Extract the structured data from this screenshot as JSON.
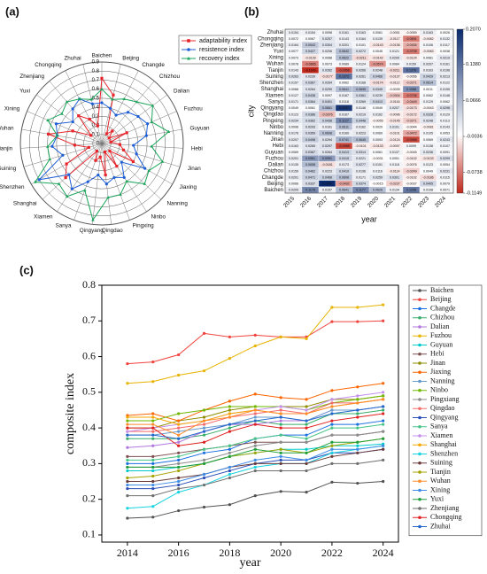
{
  "chart_data": [
    {
      "type": "radar",
      "panel": "(a)",
      "legend": "top-right",
      "categories": [
        "Baichen",
        "Beijing",
        "Changde",
        "Chizhou",
        "Dalian",
        "Fuzhou",
        "Guyuan",
        "Hebi",
        "Jinan",
        "Jiaxing",
        "Nanning",
        "Ninbo",
        "Pingxing",
        "Qingdao",
        "Qingyang",
        "Sanya",
        "Xiamen",
        "Shanghai",
        "Shenzhen",
        "Suining",
        "Tianjin",
        "Wuhan",
        "Xining",
        "Yuxi",
        "Zhenjiang",
        "Chongqing",
        "Zhuhai"
      ],
      "rlim": [
        0,
        0.9
      ],
      "rticks": [
        0,
        0.1,
        0.2,
        0.3,
        0.4,
        0.5,
        0.6,
        0.7,
        0.8,
        0.9
      ],
      "series": [
        {
          "name": "adaptability index",
          "color": "#e8252b",
          "marker": "square",
          "values": [
            0.72,
            0.55,
            0.12,
            0.18,
            0.1,
            0.3,
            0.1,
            0.2,
            0.25,
            0.4,
            0.12,
            0.3,
            0.1,
            0.35,
            0.15,
            0.2,
            0.1,
            0.55,
            0.45,
            0.15,
            0.3,
            0.6,
            0.35,
            0.15,
            0.4,
            0.3,
            0.2
          ]
        },
        {
          "name": "resistence index",
          "color": "#1f5fd6",
          "marker": "circle",
          "values": [
            0.45,
            0.4,
            0.35,
            0.45,
            0.5,
            0.55,
            0.5,
            0.35,
            0.4,
            0.55,
            0.3,
            0.45,
            0.4,
            0.45,
            0.35,
            0.45,
            0.6,
            0.5,
            0.8,
            0.45,
            0.55,
            0.5,
            0.55,
            0.4,
            0.5,
            0.55,
            0.45
          ]
        },
        {
          "name": "recovery index",
          "color": "#1aa55a",
          "marker": "triangle",
          "values": [
            0.6,
            0.5,
            0.55,
            0.6,
            0.7,
            0.6,
            0.75,
            0.55,
            0.7,
            0.6,
            0.65,
            0.5,
            0.6,
            0.6,
            0.85,
            0.55,
            0.7,
            0.65,
            0.85,
            0.6,
            0.6,
            0.5,
            0.65,
            0.55,
            0.6,
            0.55,
            0.5
          ]
        }
      ]
    },
    {
      "type": "heatmap",
      "panel": "(b)",
      "xlabel": "year",
      "ylabel": "city",
      "x": [
        2015,
        2016,
        2017,
        2018,
        2019,
        2020,
        2021,
        2022,
        2023,
        2024
      ],
      "y": [
        "Zhuhai",
        "Chongqing",
        "Zhenjiang",
        "Yuxi",
        "Xining",
        "Wuhan",
        "Tianjin",
        "Suining",
        "Shenzhen",
        "Shanghai",
        "Xiamen",
        "Sanya",
        "Qingyang",
        "Qingdao",
        "Pingxing",
        "Ninbo",
        "Nanning",
        "Jinan",
        "Hebi",
        "Guyuan",
        "Fuzhou",
        "Dalian",
        "Chizhou",
        "Changde",
        "Beijing",
        "Baichen"
      ],
      "values": [
        [
          0.0154,
          0.0154,
          0.0098,
          0.0161,
          0.0163,
          0.0061,
          -0.0051,
          -0.0059,
          0.0163,
          0.0026
        ],
        [
          0.0072,
          0.0067,
          0.0257,
          0.0143,
          0.0164,
          0.0139,
          -0.0117,
          -0.0691,
          -0.0082,
          0.0132
        ],
        [
          0.0164,
          0.0543,
          0.0304,
          0.0201,
          0.0101,
          -0.0143,
          -0.0136,
          -0.0434,
          0.0106,
          0.0117
        ],
        [
          0.0077,
          0.0427,
          0.0206,
          0.0642,
          0.0272,
          0.0045,
          0.0121,
          -0.0705,
          -0.0083,
          0.0038
        ],
        [
          0.0073,
          -0.0139,
          0.0088,
          0.0622,
          -0.0211,
          -0.0142,
          0.0209,
          -0.0124,
          0.0081,
          0.0219
        ],
        [
          0.0078,
          -0.0665,
          0.0073,
          0.0089,
          0.0124,
          -0.0574,
          0.0084,
          0.0159,
          0.0207,
          0.0161
        ],
        [
          0.0143,
          -0.1149,
          0.0262,
          -0.0958,
          0.0266,
          0.0248,
          -0.0211,
          0.1376,
          0.0163,
          0.0196
        ],
        [
          0.0263,
          0.0239,
          -0.0177,
          0.1373,
          0.0261,
          0.0466,
          -0.0137,
          -0.0056,
          0.0429,
          0.0213
        ],
        [
          0.0157,
          0.0367,
          0.0264,
          0.0062,
          0.0168,
          -0.0174,
          -0.0112,
          -0.0271,
          0.0614,
          0.0122
        ],
        [
          0.0068,
          0.0264,
          0.0299,
          0.0641,
          0.0695,
          0.0349,
          -0.0039,
          0.1088,
          0.0011,
          0.0155
        ],
        [
          0.0127,
          0.0438,
          0.0097,
          0.0167,
          0.0361,
          0.0239,
          -0.0304,
          -0.0736,
          0.0062,
          0.0148
        ],
        [
          0.0171,
          0.0364,
          0.0401,
          0.0118,
          0.0269,
          0.0413,
          -0.0116,
          -0.0449,
          0.0129,
          0.0062
        ],
        [
          0.0049,
          0.0061,
          0.0661,
          0.1937,
          0.0146,
          0.0049,
          0.0207,
          -0.0173,
          -0.0043,
          0.0298
        ],
        [
          0.0123,
          0.0386,
          -0.0376,
          0.0167,
          0.0219,
          0.0162,
          -0.0096,
          -0.0172,
          0.0328,
          0.0129
        ],
        [
          0.0234,
          0.0362,
          0.0436,
          0.1127,
          0.0448,
          -0.0055,
          -0.0145,
          -0.0271,
          0.0248,
          0.0113
        ],
        [
          0.0096,
          0.0293,
          0.0161,
          0.0611,
          0.0162,
          0.0029,
          0.0191,
          -0.0044,
          -0.0081,
          0.0143
        ],
        [
          0.0176,
          0.0359,
          0.0608,
          0.0169,
          0.0223,
          0.0069,
          -0.0101,
          -0.0472,
          0.0105,
          0.0053
        ],
        [
          0.0207,
          0.0498,
          0.0294,
          0.0741,
          0.0645,
          0.0093,
          -0.0124,
          -0.0968,
          0.0069,
          0.0243
        ],
        [
          0.0163,
          0.0265,
          0.0297,
          -0.0988,
          -0.0101,
          -0.0133,
          -0.0097,
          0.0099,
          0.0138,
          0.0107
        ],
        [
          0.0069,
          0.0367,
          0.0264,
          0.0413,
          0.0314,
          0.0061,
          0.0137,
          -0.0045,
          0.0236,
          0.0091
        ],
        [
          0.0201,
          0.0961,
          0.0991,
          0.0415,
          0.0221,
          -0.0031,
          0.0051,
          -0.0102,
          -0.0133,
          0.0299
        ],
        [
          0.0135,
          0.0658,
          -0.0181,
          0.0173,
          0.0277,
          0.0151,
          0.0118,
          -0.0076,
          0.0123,
          0.0054
        ],
        [
          0.0159,
          0.0462,
          0.0223,
          0.0419,
          0.0196,
          0.0116,
          -0.0114,
          -0.0249,
          0.0049,
          0.0231
        ],
        [
          0.0201,
          0.0471,
          0.0468,
          0.0608,
          0.0171,
          0.0259,
          0.0301,
          -0.0102,
          -0.0186,
          0.0115
        ],
        [
          0.0066,
          0.0337,
          0.2069,
          -0.0492,
          0.0374,
          -0.0015,
          -0.0237,
          -0.0037,
          0.0405,
          0.0079
        ],
        [
          0.0209,
          0.1178,
          0.0157,
          0.0641,
          0.1177,
          0.0626,
          0.0134,
          0.1298,
          0.0108,
          0.0071
        ]
      ],
      "zlim": [
        -0.1149,
        0.207
      ],
      "zticks": [
        {
          "value": 0.207,
          "label": "0.2070"
        },
        {
          "value": 0.138,
          "label": "0.1380"
        },
        0.0666,
        -0.0036,
        -0.0738,
        -0.1149
      ],
      "colormap": {
        "low": "#c0281c",
        "mid": "#ffffff",
        "high": "#0a2a6e"
      }
    },
    {
      "type": "line",
      "panel": "(c)",
      "xlabel": "year",
      "ylabel": "composite index",
      "x": [
        2014,
        2015,
        2016,
        2017,
        2018,
        2019,
        2020,
        2021,
        2022,
        2023,
        2024
      ],
      "xlim": [
        2013,
        2024.6
      ],
      "ylim": [
        0.08,
        0.8
      ],
      "xticks": [
        2014,
        2016,
        2018,
        2020,
        2022,
        2024
      ],
      "yticks": [
        0.1,
        0.2,
        0.3,
        0.4,
        0.5,
        0.6,
        0.7,
        0.8
      ],
      "legend": "right",
      "series": [
        {
          "name": "Baichen",
          "color": "#515151",
          "values": [
            0.147,
            0.15,
            0.168,
            0.178,
            0.185,
            0.21,
            0.222,
            0.22,
            0.248,
            0.245,
            0.25
          ]
        },
        {
          "name": "Beijing",
          "color": "#f0433e",
          "values": [
            0.58,
            0.585,
            0.605,
            0.665,
            0.655,
            0.66,
            0.655,
            0.655,
            0.698,
            0.698,
            0.7
          ]
        },
        {
          "name": "Changde",
          "color": "#1a6fdf",
          "values": [
            0.3,
            0.3,
            0.31,
            0.33,
            0.34,
            0.37,
            0.38,
            0.38,
            0.41,
            0.41,
            0.42
          ]
        },
        {
          "name": "Chizhou",
          "color": "#37ad6b",
          "values": [
            0.37,
            0.37,
            0.37,
            0.38,
            0.4,
            0.42,
            0.41,
            0.41,
            0.44,
            0.44,
            0.45
          ]
        },
        {
          "name": "Dalian",
          "color": "#b177de",
          "values": [
            0.345,
            0.35,
            0.36,
            0.39,
            0.41,
            0.41,
            0.42,
            0.42,
            0.45,
            0.45,
            0.46
          ]
        },
        {
          "name": "Fuzhou",
          "color": "#e8b300",
          "values": [
            0.525,
            0.53,
            0.548,
            0.56,
            0.595,
            0.63,
            0.655,
            0.65,
            0.738,
            0.738,
            0.745
          ]
        },
        {
          "name": "Guyuan",
          "color": "#00cbcc",
          "values": [
            0.28,
            0.28,
            0.29,
            0.3,
            0.32,
            0.33,
            0.34,
            0.34,
            0.35,
            0.35,
            0.355
          ]
        },
        {
          "name": "Hebi",
          "color": "#7d4e4e",
          "values": [
            0.32,
            0.32,
            0.33,
            0.34,
            0.35,
            0.36,
            0.36,
            0.36,
            0.38,
            0.38,
            0.39
          ]
        },
        {
          "name": "Jinan",
          "color": "#8e8e00",
          "values": [
            0.4,
            0.4,
            0.42,
            0.43,
            0.45,
            0.46,
            0.46,
            0.46,
            0.48,
            0.48,
            0.49
          ]
        },
        {
          "name": "Jiaxing",
          "color": "#fb6501",
          "values": [
            0.435,
            0.44,
            0.42,
            0.45,
            0.475,
            0.495,
            0.485,
            0.48,
            0.505,
            0.515,
            0.525
          ]
        },
        {
          "name": "Nanning",
          "color": "#6699cc",
          "values": [
            0.38,
            0.38,
            0.39,
            0.4,
            0.41,
            0.43,
            0.43,
            0.42,
            0.45,
            0.45,
            0.46
          ]
        },
        {
          "name": "Ninbo",
          "color": "#6fb802",
          "values": [
            0.42,
            0.42,
            0.44,
            0.45,
            0.46,
            0.46,
            0.46,
            0.45,
            0.47,
            0.48,
            0.49
          ]
        },
        {
          "name": "Pingxiang",
          "color": "#8c8c8c",
          "values": [
            0.29,
            0.29,
            0.3,
            0.31,
            0.33,
            0.35,
            0.36,
            0.36,
            0.38,
            0.38,
            0.39
          ]
        },
        {
          "name": "Qingdao",
          "color": "#f56a6a",
          "values": [
            0.39,
            0.39,
            0.4,
            0.41,
            0.43,
            0.44,
            0.45,
            0.44,
            0.47,
            0.47,
            0.48
          ]
        },
        {
          "name": "Qingyang",
          "color": "#2b4fb8",
          "values": [
            0.23,
            0.23,
            0.24,
            0.26,
            0.28,
            0.3,
            0.31,
            0.31,
            0.33,
            0.33,
            0.34
          ]
        },
        {
          "name": "Sanya",
          "color": "#46c486",
          "values": [
            0.31,
            0.31,
            0.32,
            0.34,
            0.35,
            0.37,
            0.38,
            0.37,
            0.4,
            0.4,
            0.41
          ]
        },
        {
          "name": "Xiamen",
          "color": "#c58ff0",
          "values": [
            0.39,
            0.4,
            0.41,
            0.42,
            0.44,
            0.45,
            0.46,
            0.45,
            0.48,
            0.49,
            0.5
          ]
        },
        {
          "name": "Shanghai",
          "color": "#f5a700",
          "values": [
            0.43,
            0.43,
            0.41,
            0.42,
            0.44,
            0.45,
            0.44,
            0.44,
            0.46,
            0.47,
            0.48
          ]
        },
        {
          "name": "Shenzhen",
          "color": "#19d3e0",
          "values": [
            0.175,
            0.18,
            0.22,
            0.24,
            0.27,
            0.29,
            0.3,
            0.3,
            0.33,
            0.34,
            0.35
          ]
        },
        {
          "name": "Suining",
          "color": "#6b3b3b",
          "values": [
            0.25,
            0.25,
            0.26,
            0.27,
            0.29,
            0.3,
            0.3,
            0.3,
            0.32,
            0.33,
            0.34
          ]
        },
        {
          "name": "Tianjin",
          "color": "#a3a300",
          "values": [
            0.26,
            0.265,
            0.28,
            0.3,
            0.32,
            0.33,
            0.34,
            0.33,
            0.35,
            0.36,
            0.37
          ]
        },
        {
          "name": "Wuhan",
          "color": "#ff8a2b",
          "values": [
            0.41,
            0.41,
            0.38,
            0.42,
            0.43,
            0.45,
            0.44,
            0.44,
            0.46,
            0.47,
            0.48
          ]
        },
        {
          "name": "Xining",
          "color": "#3d8ce6",
          "values": [
            0.24,
            0.24,
            0.25,
            0.27,
            0.29,
            0.31,
            0.32,
            0.31,
            0.34,
            0.34,
            0.35
          ]
        },
        {
          "name": "Yuxi",
          "color": "#1f9e3a",
          "values": [
            0.29,
            0.29,
            0.29,
            0.3,
            0.32,
            0.34,
            0.33,
            0.33,
            0.36,
            0.36,
            0.37
          ]
        },
        {
          "name": "Zhenjiang",
          "color": "#6e6e6e",
          "values": [
            0.21,
            0.21,
            0.23,
            0.24,
            0.26,
            0.28,
            0.28,
            0.28,
            0.3,
            0.3,
            0.31
          ]
        },
        {
          "name": "Chongqing",
          "color": "#e02020",
          "values": [
            0.4,
            0.4,
            0.35,
            0.36,
            0.39,
            0.41,
            0.4,
            0.4,
            0.42,
            0.43,
            0.44
          ]
        },
        {
          "name": "Zhuhai",
          "color": "#2266cc",
          "values": [
            0.38,
            0.38,
            0.37,
            0.39,
            0.41,
            0.42,
            0.43,
            0.42,
            0.44,
            0.45,
            0.46
          ]
        }
      ]
    }
  ]
}
